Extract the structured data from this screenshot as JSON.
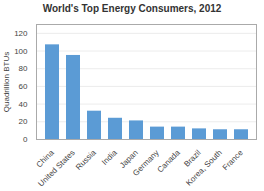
{
  "chart_data": {
    "type": "bar",
    "title": "World's Top Energy Consumers, 2012",
    "ylabel": "Quadrillion BTUs",
    "categories": [
      "China",
      "United States",
      "Russia",
      "India",
      "Japan",
      "Germany",
      "Canada",
      "Brazil",
      "Korea, South",
      "France"
    ],
    "values": [
      107,
      95,
      32,
      24,
      21,
      14,
      14,
      12,
      11,
      11
    ],
    "color": "#5b9bd5",
    "ylim": [
      0,
      130
    ],
    "yticks": [
      0,
      20,
      40,
      60,
      80,
      100,
      120
    ],
    "grid": true
  }
}
